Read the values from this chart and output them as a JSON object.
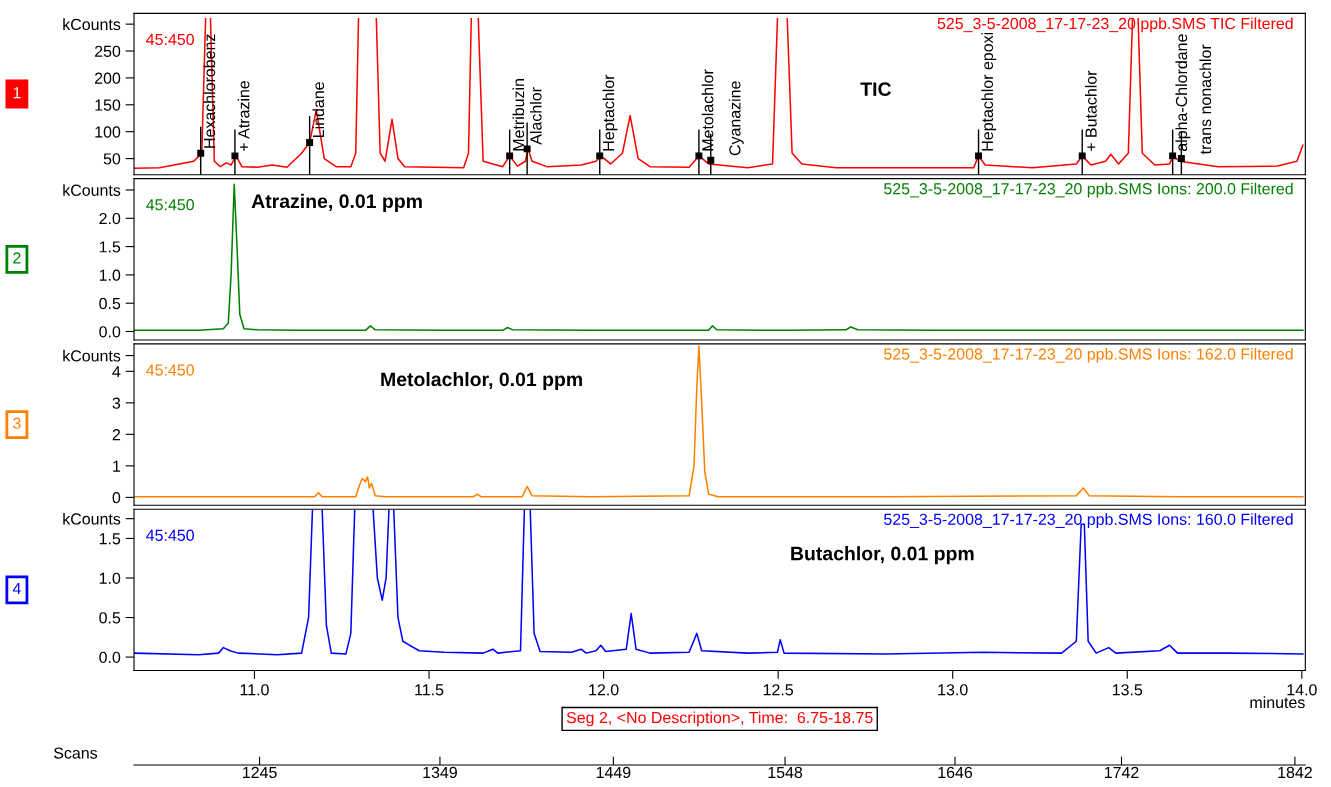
{
  "chart_data": [
    {
      "type": "line",
      "title": "525_3-5-2008_17-17-23_20 ppb.SMS TIC Filtered",
      "tick_labels": "y",
      "annotations": [
        "1",
        "45:450",
        "TIC",
        {
          "text": "Hexachlorobenz",
          "x": 10.846,
          "y": 60
        },
        {
          "text": "+ Atrazine",
          "x": 10.944,
          "y": 55
        },
        {
          "text": "Lindane",
          "x": 11.158,
          "y": 80
        },
        {
          "text": "Metribuzin",
          "x": 11.731,
          "y": 55
        },
        {
          "text": "Alachlor",
          "x": 11.781,
          "y": 68
        },
        {
          "text": "Heptachlor",
          "x": 11.989,
          "y": 55
        },
        {
          "text": "Metolachlor",
          "x": 12.273,
          "y": 55
        },
        {
          "text": "Cyanazine",
          "x": 12.307,
          "y": 47
        },
        {
          "text": "Heptachlor epoxi",
          "x": 13.074,
          "y": 55
        },
        {
          "text": "+ Butachlor",
          "x": 13.371,
          "y": 55
        },
        {
          "text": "alpha-Chlordane",
          "x": 13.63,
          "y": 55
        },
        {
          "text": "trans nonachlor",
          "x": 13.655,
          "y": 50
        }
      ],
      "x": [
        10.655,
        10.728,
        10.826,
        10.849,
        10.86,
        10.867,
        10.874,
        10.885,
        10.902,
        10.919,
        10.933,
        10.947,
        10.964,
        11.009,
        11.051,
        11.093,
        11.135,
        11.158,
        11.177,
        11.2,
        11.234,
        11.276,
        11.29,
        11.298,
        11.323,
        11.349,
        11.36,
        11.374,
        11.394,
        11.411,
        11.43,
        11.515,
        11.599,
        11.613,
        11.621,
        11.631,
        11.641,
        11.655,
        11.683,
        11.711,
        11.731,
        11.753,
        11.776,
        11.784,
        11.795,
        11.838,
        11.936,
        11.978,
        11.992,
        12.02,
        12.054,
        12.076,
        12.099,
        12.133,
        12.245,
        12.273,
        12.301,
        12.413,
        12.484,
        12.498,
        12.512,
        12.526,
        12.54,
        12.568,
        12.666,
        13.06,
        13.074,
        13.093,
        13.228,
        13.354,
        13.371,
        13.396,
        13.438,
        13.453,
        13.475,
        13.503,
        13.515,
        13.523,
        13.531,
        13.543,
        13.579,
        13.621,
        13.633,
        13.649,
        13.761,
        13.93,
        13.986,
        14.003
      ],
      "series": [
        {
          "color": "#ff0000",
          "values": [
            32,
            33,
            45,
            60,
            310,
            null,
            310,
            45,
            35,
            42,
            38,
            55,
            35,
            34,
            38,
            34,
            60,
            80,
            140,
            50,
            35,
            35,
            60,
            310,
            null,
            310,
            60,
            45,
            123,
            50,
            35,
            34,
            33,
            60,
            310,
            null,
            310,
            45,
            40,
            35,
            55,
            36,
            45,
            68,
            45,
            35,
            38,
            45,
            55,
            40,
            60,
            130,
            50,
            35,
            34,
            55,
            40,
            33,
            40,
            310,
            null,
            310,
            60,
            40,
            33,
            33,
            55,
            38,
            33,
            40,
            55,
            38,
            45,
            58,
            40,
            60,
            310,
            null,
            310,
            60,
            38,
            40,
            55,
            45,
            35,
            36,
            45,
            75
          ]
        }
      ],
      "xlim": [
        10.655,
        14.01
      ],
      "ylim": [
        20,
        320
      ],
      "yticks": [
        50,
        100,
        150,
        200,
        250,
        {
          "value": 300,
          "label": "kCounts"
        }
      ]
    },
    {
      "type": "line",
      "title": "525_3-5-2008_17-17-23_20 ppb.SMS Ions: 200.0 Filtered",
      "tick_labels": "y",
      "annotations": [
        "2",
        "45:450",
        "Atrazine, 0.01 ppm"
      ],
      "x": [
        10.655,
        10.84,
        10.911,
        10.925,
        10.933,
        10.942,
        10.95,
        10.958,
        10.97,
        11.009,
        11.121,
        11.318,
        11.332,
        11.346,
        11.543,
        11.711,
        11.725,
        11.739,
        11.964,
        12.301,
        12.312,
        12.324,
        12.526,
        12.694,
        12.708,
        12.728,
        12.947,
        13.368,
        13.649,
        14.003
      ],
      "series": [
        {
          "color": "#008000",
          "values": [
            0.02,
            0.02,
            0.05,
            0.15,
            1.0,
            2.6,
            1.5,
            0.3,
            0.05,
            0.03,
            0.02,
            0.02,
            0.1,
            0.03,
            0.02,
            0.02,
            0.07,
            0.03,
            0.02,
            0.02,
            0.1,
            0.03,
            0.02,
            0.03,
            0.08,
            0.03,
            0.02,
            0.02,
            0.02,
            0.02
          ]
        }
      ],
      "xlim": [
        10.655,
        14.01
      ],
      "ylim": [
        -0.15,
        2.7
      ],
      "yticks": [
        {
          "value": 0,
          "label": "0.0"
        },
        {
          "value": 0.5,
          "label": "0.5"
        },
        {
          "value": 1,
          "label": "1.0"
        },
        {
          "value": 1.5,
          "label": "1.5"
        },
        {
          "value": 2,
          "label": "2.0"
        },
        {
          "value": 2.5,
          "label": "kCounts"
        }
      ]
    },
    {
      "type": "line",
      "title": "525_3-5-2008_17-17-23_20 ppb.SMS Ions: 162.0 Filtered",
      "tick_labels": "y",
      "annotations": [
        "3",
        "45:450",
        "Metolachlor, 0.01 ppm"
      ],
      "x": [
        10.655,
        11.121,
        11.172,
        11.183,
        11.194,
        11.29,
        11.301,
        11.309,
        11.318,
        11.324,
        11.329,
        11.335,
        11.346,
        11.374,
        11.627,
        11.638,
        11.649,
        11.767,
        11.781,
        11.795,
        11.964,
        12.245,
        12.259,
        12.267,
        12.273,
        12.281,
        12.29,
        12.301,
        12.329,
        12.807,
        13.354,
        13.374,
        13.391,
        13.649,
        14.003
      ],
      "series": [
        {
          "color": "#ff8000",
          "values": [
            0.02,
            0.02,
            0.02,
            0.15,
            0.02,
            0.02,
            0.4,
            0.6,
            0.5,
            0.65,
            0.3,
            0.45,
            0.05,
            0.02,
            0.02,
            0.1,
            0.02,
            0.02,
            0.35,
            0.05,
            0.02,
            0.05,
            1.0,
            3.5,
            4.8,
            3.0,
            0.8,
            0.1,
            0.02,
            0.02,
            0.05,
            0.3,
            0.05,
            0.02,
            0.02
          ]
        }
      ],
      "xlim": [
        10.655,
        14.01
      ],
      "ylim": [
        -0.25,
        4.87
      ],
      "yticks": [
        0,
        1,
        2,
        3,
        4,
        {
          "value": 4.5,
          "label": "kCounts"
        }
      ]
    },
    {
      "type": "line",
      "title": "525_3-5-2008_17-17-23_20 ppb.SMS Ions: 160.0 Filtered",
      "xlabel": "minutes",
      "x2label": "Scans",
      "annotations": [
        "4",
        "45:450",
        "Butachlor, 0.01 ppm",
        "Seg 2, <No Description>, Time:  6.75-18.75"
      ],
      "x": [
        10.655,
        10.84,
        10.897,
        10.911,
        10.93,
        10.953,
        11.065,
        11.135,
        11.155,
        11.166,
        11.18,
        11.194,
        11.206,
        11.22,
        11.262,
        11.276,
        11.287,
        11.313,
        11.34,
        11.352,
        11.366,
        11.377,
        11.385,
        11.392,
        11.399,
        11.411,
        11.425,
        11.444,
        11.472,
        11.543,
        11.655,
        11.683,
        11.697,
        11.762,
        11.773,
        11.781,
        11.79,
        11.801,
        11.818,
        11.908,
        11.936,
        11.95,
        11.978,
        11.992,
        12.006,
        12.065,
        12.079,
        12.093,
        12.133,
        12.245,
        12.267,
        12.281,
        12.413,
        12.498,
        12.506,
        12.517,
        12.807,
        13.088,
        13.312,
        13.354,
        13.368,
        13.377,
        13.388,
        13.411,
        13.447,
        13.467,
        13.593,
        13.621,
        13.644,
        13.79,
        14.003
      ],
      "series": [
        {
          "color": "#0000ff",
          "values": [
            0.05,
            0.03,
            0.05,
            0.12,
            0.08,
            0.05,
            0.03,
            0.05,
            0.5,
            1.85,
            null,
            1.85,
            0.4,
            0.05,
            0.04,
            0.3,
            1.85,
            null,
            1.85,
            1.0,
            0.72,
            1.0,
            1.85,
            null,
            1.85,
            0.5,
            0.2,
            0.15,
            0.08,
            0.06,
            0.05,
            0.1,
            0.05,
            0.08,
            1.85,
            null,
            1.85,
            0.3,
            0.07,
            0.06,
            0.1,
            0.05,
            0.08,
            0.15,
            0.07,
            0.1,
            0.55,
            0.1,
            0.05,
            0.06,
            0.3,
            0.08,
            0.05,
            0.06,
            0.22,
            0.05,
            0.04,
            0.06,
            0.05,
            0.2,
            1.68,
            1.68,
            0.2,
            0.05,
            0.12,
            0.05,
            0.08,
            0.15,
            0.05,
            0.05,
            0.04
          ]
        }
      ],
      "xlim": [
        10.655,
        14.01
      ],
      "ylim": [
        -0.17,
        1.87
      ],
      "xticks": [
        {
          "value": 11,
          "label": "11.0"
        },
        {
          "value": 11.5,
          "label": "11.5"
        },
        {
          "value": 12,
          "label": "12.0"
        },
        {
          "value": 12.5,
          "label": "12.5"
        },
        {
          "value": 13,
          "label": "13.0"
        },
        {
          "value": 13.5,
          "label": "13.5"
        },
        {
          "value": 14,
          "label": "14.0"
        }
      ],
      "yticks": [
        {
          "value": 0,
          "label": "0.0"
        },
        {
          "value": 0.5,
          "label": "0.5"
        },
        {
          "value": 1,
          "label": "1.0"
        },
        {
          "value": 1.5,
          "label": "1.5"
        },
        {
          "value": 1.75,
          "label": "kCounts"
        }
      ],
      "x2lim": [
        1172.6,
        1848
      ],
      "x2ticks": [
        1245,
        1349,
        1449,
        1548,
        1646,
        1742,
        1842
      ]
    }
  ]
}
